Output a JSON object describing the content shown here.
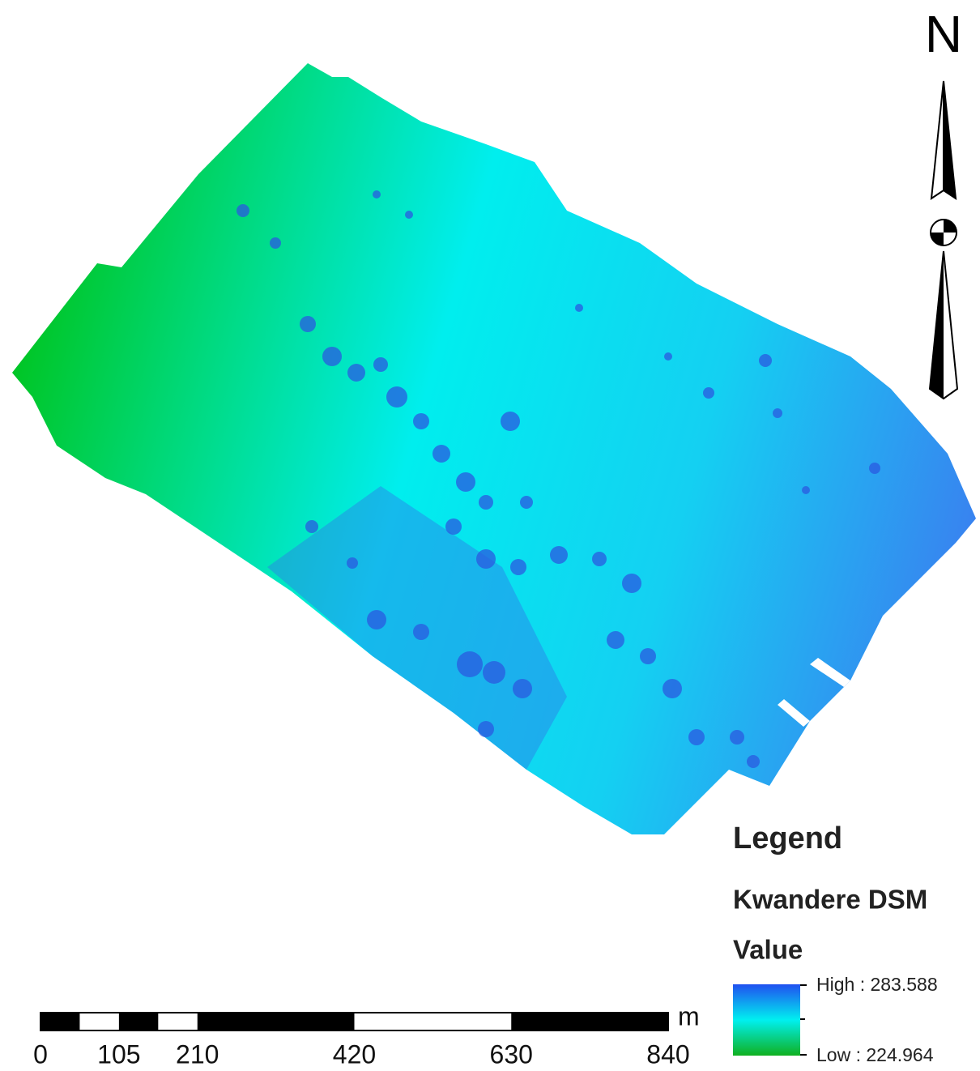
{
  "north_arrow": {
    "label": "N"
  },
  "legend": {
    "title": "Legend",
    "layer": "Kwandere DSM",
    "field": "Value",
    "high_label": "High : 283.588",
    "low_label": "Low : 224.964"
  },
  "scale_bar": {
    "ticks": [
      0,
      105,
      210,
      420,
      630,
      840
    ],
    "unit": "m"
  }
}
